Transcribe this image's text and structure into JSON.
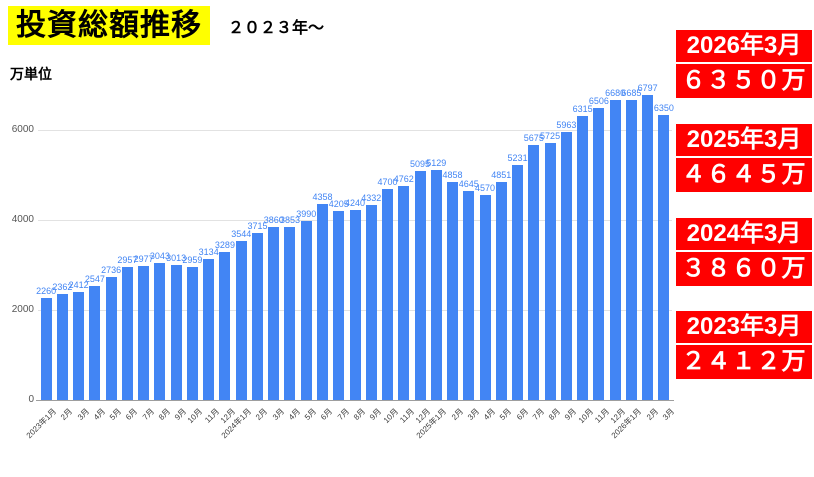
{
  "header": {
    "title": "投資総額推移",
    "subtitle": "２０２３年～",
    "unit_label": "万単位"
  },
  "chart_data": {
    "type": "bar",
    "title": "投資総額推移",
    "xlabel": "",
    "ylabel": "万単位",
    "ylim": [
      0,
      6900
    ],
    "yticks": [
      0,
      2000,
      4000,
      6000
    ],
    "grid": true,
    "legend": "none",
    "bar_color": "#4285f4",
    "label_color": "#4285f4",
    "categories": [
      "2023年1月",
      "2月",
      "3月",
      "4月",
      "5月",
      "6月",
      "7月",
      "8月",
      "9月",
      "10月",
      "11月",
      "12月",
      "2024年1月",
      "2月",
      "3月",
      "4月",
      "5月",
      "6月",
      "7月",
      "8月",
      "9月",
      "10月",
      "11月",
      "12月",
      "2025年1月",
      "2月",
      "3月",
      "4月",
      "5月",
      "6月",
      "7月",
      "8月",
      "9月",
      "10月",
      "11月",
      "12月",
      "2026年1月",
      "2月",
      "3月"
    ],
    "values": [
      2260,
      2362,
      2412,
      2547,
      2736,
      2957,
      2977,
      3043,
      3013,
      2959,
      3134,
      3289,
      3544,
      3715,
      3860,
      3853,
      3990,
      4358,
      4205,
      4240,
      4332,
      4700,
      4762,
      5095,
      5129,
      4858,
      4645,
      4570,
      4851,
      5231,
      5675,
      5725,
      5963,
      6315,
      6506,
      6680,
      6685,
      6797,
      6350
    ]
  },
  "badges": [
    {
      "period": "2026年3月",
      "amount": "６３５０万"
    },
    {
      "period": "2025年3月",
      "amount": "４６４５万"
    },
    {
      "period": "2024年3月",
      "amount": "３８６０万"
    },
    {
      "period": "2023年3月",
      "amount": "２４１２万"
    }
  ],
  "colors": {
    "bar": "#4285f4",
    "badge_bg": "#ff0000",
    "badge_text": "#ffffff",
    "title_highlight": "#ffff00",
    "gridline": "#e2e2e2"
  }
}
